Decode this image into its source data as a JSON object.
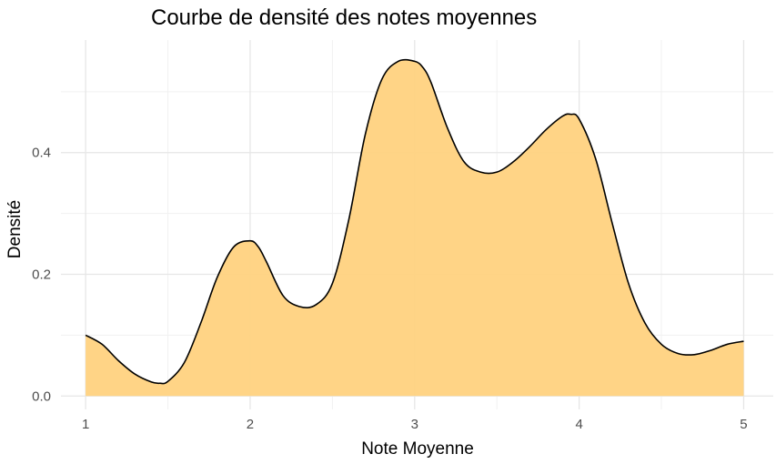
{
  "chart_data": {
    "type": "area",
    "title": "Courbe de densité des notes moyennes",
    "xlabel": "Note Moyenne",
    "ylabel": "Densité",
    "xlim": [
      0.85,
      5.18
    ],
    "ylim": [
      -0.022,
      0.585
    ],
    "x_ticks": [
      1,
      2,
      3,
      4,
      5
    ],
    "x_tick_labels": [
      "1",
      "2",
      "3",
      "4",
      "5"
    ],
    "x_minor_ticks": [
      1.5,
      2.5,
      3.5,
      4.5
    ],
    "y_ticks": [
      0.0,
      0.2,
      0.4
    ],
    "y_tick_labels": [
      "0.0",
      "0.2",
      "0.4"
    ],
    "y_minor_ticks": [
      0.1,
      0.3,
      0.5
    ],
    "grid": true,
    "legend": "none",
    "fill_color": "#FFD280",
    "line_color": "#000000",
    "series": [
      {
        "x": [
          1.0,
          1.1,
          1.2,
          1.3,
          1.4,
          1.45,
          1.5,
          1.6,
          1.7,
          1.8,
          1.9,
          2.0,
          2.05,
          2.1,
          2.2,
          2.3,
          2.4,
          2.5,
          2.6,
          2.7,
          2.8,
          2.9,
          3.0,
          3.05,
          3.1,
          3.2,
          3.3,
          3.4,
          3.5,
          3.6,
          3.7,
          3.8,
          3.9,
          3.95,
          4.0,
          4.1,
          4.2,
          4.3,
          4.4,
          4.5,
          4.6,
          4.7,
          4.8,
          4.9,
          5.0
        ],
        "y": [
          0.1,
          0.085,
          0.058,
          0.036,
          0.023,
          0.021,
          0.024,
          0.055,
          0.12,
          0.195,
          0.245,
          0.255,
          0.245,
          0.22,
          0.165,
          0.147,
          0.15,
          0.185,
          0.29,
          0.43,
          0.52,
          0.55,
          0.55,
          0.54,
          0.515,
          0.44,
          0.385,
          0.368,
          0.368,
          0.385,
          0.41,
          0.438,
          0.46,
          0.463,
          0.455,
          0.39,
          0.285,
          0.185,
          0.12,
          0.085,
          0.07,
          0.068,
          0.075,
          0.085,
          0.09
        ]
      }
    ]
  }
}
